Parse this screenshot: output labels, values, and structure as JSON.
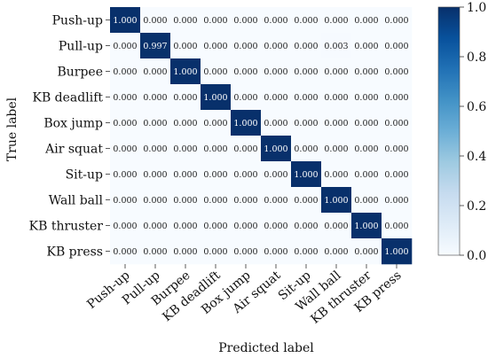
{
  "chart_data": {
    "type": "heatmap",
    "title": "",
    "xlabel": "Predicted label",
    "ylabel": "True label",
    "x_categories": [
      "Push-up",
      "Pull-up",
      "Burpee",
      "KB deadlift",
      "Box jump",
      "Air squat",
      "Sit-up",
      "Wall ball",
      "KB thruster",
      "KB press"
    ],
    "y_categories": [
      "Push-up",
      "Pull-up",
      "Burpee",
      "KB deadlift",
      "Box jump",
      "Air squat",
      "Sit-up",
      "Wall ball",
      "KB thruster",
      "KB press"
    ],
    "values": [
      [
        1.0,
        0.0,
        0.0,
        0.0,
        0.0,
        0.0,
        0.0,
        0.0,
        0.0,
        0.0
      ],
      [
        0.0,
        0.997,
        0.0,
        0.0,
        0.0,
        0.0,
        0.0,
        0.003,
        0.0,
        0.0
      ],
      [
        0.0,
        0.0,
        1.0,
        0.0,
        0.0,
        0.0,
        0.0,
        0.0,
        0.0,
        0.0
      ],
      [
        0.0,
        0.0,
        0.0,
        1.0,
        0.0,
        0.0,
        0.0,
        0.0,
        0.0,
        0.0
      ],
      [
        0.0,
        0.0,
        0.0,
        0.0,
        1.0,
        0.0,
        0.0,
        0.0,
        0.0,
        0.0
      ],
      [
        0.0,
        0.0,
        0.0,
        0.0,
        0.0,
        1.0,
        0.0,
        0.0,
        0.0,
        0.0
      ],
      [
        0.0,
        0.0,
        0.0,
        0.0,
        0.0,
        0.0,
        1.0,
        0.0,
        0.0,
        0.0
      ],
      [
        0.0,
        0.0,
        0.0,
        0.0,
        0.0,
        0.0,
        0.0,
        1.0,
        0.0,
        0.0
      ],
      [
        0.0,
        0.0,
        0.0,
        0.0,
        0.0,
        0.0,
        0.0,
        0.0,
        1.0,
        0.0
      ],
      [
        0.0,
        0.0,
        0.0,
        0.0,
        0.0,
        0.0,
        0.0,
        0.0,
        0.0,
        1.0
      ]
    ],
    "cell_labels": [
      [
        "1.000",
        "0.000",
        "0.000",
        "0.000",
        "0.000",
        "0.000",
        "0.000",
        "0.000",
        "0.000",
        "0.000"
      ],
      [
        "0.000",
        "0.997",
        "0.000",
        "0.000",
        "0.000",
        "0.000",
        "0.000",
        "0.003",
        "0.000",
        "0.000"
      ],
      [
        "0.000",
        "0.000",
        "1.000",
        "0.000",
        "0.000",
        "0.000",
        "0.000",
        "0.000",
        "0.000",
        "0.000"
      ],
      [
        "0.000",
        "0.000",
        "0.000",
        "1.000",
        "0.000",
        "0.000",
        "0.000",
        "0.000",
        "0.000",
        "0.000"
      ],
      [
        "0.000",
        "0.000",
        "0.000",
        "0.000",
        "1.000",
        "0.000",
        "0.000",
        "0.000",
        "0.000",
        "0.000"
      ],
      [
        "0.000",
        "0.000",
        "0.000",
        "0.000",
        "0.000",
        "1.000",
        "0.000",
        "0.000",
        "0.000",
        "0.000"
      ],
      [
        "0.000",
        "0.000",
        "0.000",
        "0.000",
        "0.000",
        "0.000",
        "1.000",
        "0.000",
        "0.000",
        "0.000"
      ],
      [
        "0.000",
        "0.000",
        "0.000",
        "0.000",
        "0.000",
        "0.000",
        "0.000",
        "1.000",
        "0.000",
        "0.000"
      ],
      [
        "0.000",
        "0.000",
        "0.000",
        "0.000",
        "0.000",
        "0.000",
        "0.000",
        "0.000",
        "1.000",
        "0.000"
      ],
      [
        "0.000",
        "0.000",
        "0.000",
        "0.000",
        "0.000",
        "0.000",
        "0.000",
        "0.000",
        "0.000",
        "1.000"
      ]
    ],
    "colorbar": {
      "range": [
        0.0,
        1.0
      ],
      "ticks": [
        0.0,
        0.2,
        0.4,
        0.6,
        0.8,
        1.0
      ],
      "tick_labels": [
        "0.0",
        "0.2",
        "0.4",
        "0.6",
        "0.8",
        "1.0"
      ],
      "low_color": "#f7fbff",
      "high_color": "#08306b"
    },
    "grid": false,
    "legend": "colorbar-right"
  }
}
